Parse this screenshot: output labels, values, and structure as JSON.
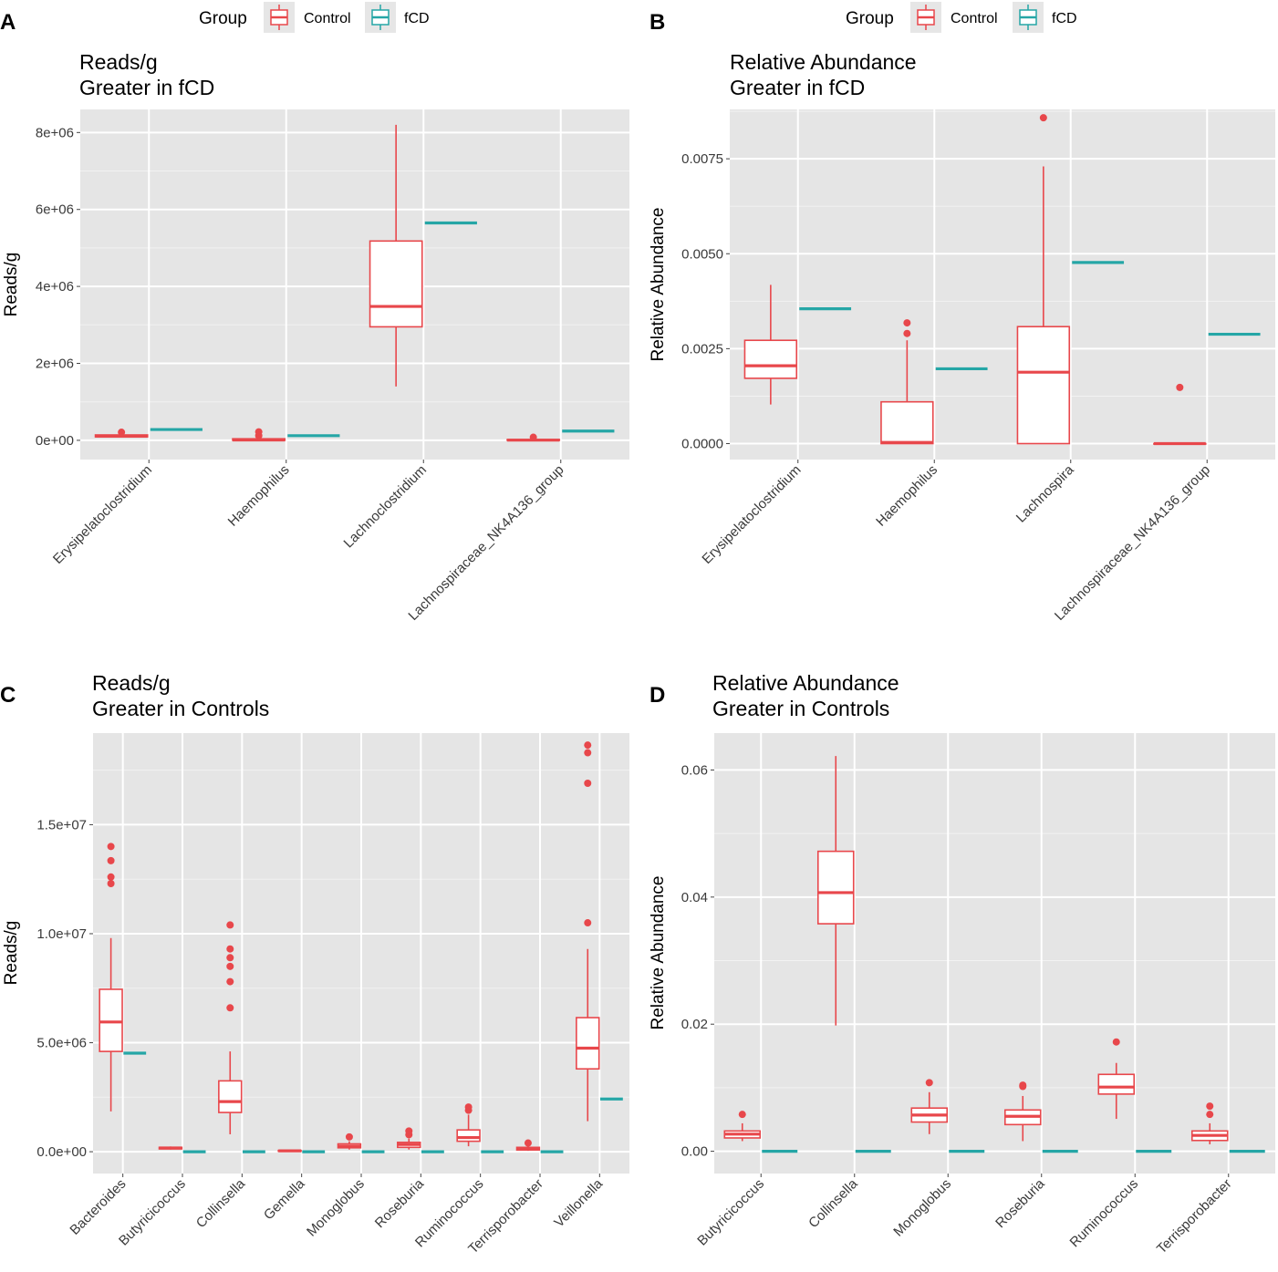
{
  "legend": {
    "title": "Group",
    "entries": [
      {
        "name": "Control",
        "color": "#E8474B"
      },
      {
        "name": "fCD",
        "color": "#25A6A6"
      }
    ]
  },
  "chart_data": [
    {
      "letter": "A",
      "type": "box",
      "title_lines": [
        "Reads/g",
        "Greater in fCD"
      ],
      "ylabel": "Reads/g",
      "ylim": [
        -500000,
        8600000
      ],
      "yticks": [
        0,
        2000000,
        4000000,
        6000000,
        8000000
      ],
      "ytick_labels": [
        "0e+00",
        "2e+06",
        "4e+06",
        "6e+06",
        "8e+06"
      ],
      "categories": [
        "Erysipelatoclostridium",
        "Haemophilus",
        "Lachnoclostridium",
        "Lachnospiraceae_NK4A136_group"
      ],
      "control": [
        {
          "min": 80000,
          "q1": 90000,
          "median": 110000,
          "q3": 140000,
          "max": 160000,
          "outliers": [
            210000
          ]
        },
        {
          "min": 0,
          "q1": 0,
          "median": 10000,
          "q3": 40000,
          "max": 60000,
          "outliers": [
            120000,
            220000
          ]
        },
        {
          "min": 1400000,
          "q1": 2950000,
          "median": 3480000,
          "q3": 5180000,
          "max": 8200000,
          "outliers": []
        },
        {
          "min": 0,
          "q1": 0,
          "median": 5000,
          "q3": 20000,
          "max": 30000,
          "outliers": [
            80000
          ]
        }
      ],
      "fcd": [
        280000,
        120000,
        5650000,
        240000
      ]
    },
    {
      "letter": "B",
      "type": "box",
      "title_lines": [
        "Relative Abundance",
        "Greater in fCD"
      ],
      "ylabel": "Relative Abundance",
      "ylim": [
        -0.00042,
        0.0088
      ],
      "yticks": [
        0,
        0.0025,
        0.005,
        0.0075
      ],
      "ytick_labels": [
        "0.0000",
        "0.0025",
        "0.0050",
        "0.0075"
      ],
      "categories": [
        "Erysipelatoclostridium",
        "Haemophilus",
        "Lachnospira",
        "Lachnospiraceae_NK4A136_group"
      ],
      "control": [
        {
          "min": 0.00103,
          "q1": 0.00172,
          "median": 0.00205,
          "q3": 0.00272,
          "max": 0.00418,
          "outliers": []
        },
        {
          "min": 0,
          "q1": 0,
          "median": 3e-05,
          "q3": 0.0011,
          "max": 0.00272,
          "outliers": [
            0.0029,
            0.00318
          ]
        },
        {
          "min": 0,
          "q1": 0,
          "median": 0.00188,
          "q3": 0.00308,
          "max": 0.0073,
          "outliers": [
            0.00858
          ]
        },
        {
          "min": 0,
          "q1": 0,
          "median": 0,
          "q3": 0,
          "max": 0,
          "outliers": [
            0.00148
          ]
        }
      ],
      "fcd": [
        0.00355,
        0.00197,
        0.00477,
        0.00288
      ]
    },
    {
      "letter": "C",
      "type": "box",
      "title_lines": [
        "Reads/g",
        "Greater in Controls"
      ],
      "ylabel": "Reads/g",
      "ylim": [
        -1000000,
        19200000
      ],
      "yticks": [
        0,
        5000000,
        10000000,
        15000000
      ],
      "ytick_labels": [
        "0.0e+00",
        "5.0e+06",
        "1.0e+07",
        "1.5e+07"
      ],
      "categories": [
        "Bacteroides",
        "Butyricicoccus",
        "Collinsella",
        "Gemella",
        "Monoglobus",
        "Roseburia",
        "Ruminococcus",
        "Terrisporobacter",
        "Veillonella"
      ],
      "control": [
        {
          "min": 1850000,
          "q1": 4600000,
          "median": 5950000,
          "q3": 7450000,
          "max": 9800000,
          "outliers": [
            12300000,
            12600000,
            13350000,
            14000000
          ]
        },
        {
          "min": 100000,
          "q1": 130000,
          "median": 170000,
          "q3": 200000,
          "max": 240000,
          "outliers": []
        },
        {
          "min": 800000,
          "q1": 1800000,
          "median": 2300000,
          "q3": 3250000,
          "max": 4600000,
          "outliers": [
            6600000,
            7800000,
            8500000,
            8900000,
            9300000,
            10400000
          ]
        },
        {
          "min": 0,
          "q1": 20000,
          "median": 40000,
          "q3": 60000,
          "max": 90000,
          "outliers": []
        },
        {
          "min": 100000,
          "q1": 180000,
          "median": 250000,
          "q3": 360000,
          "max": 480000,
          "outliers": [
            680000
          ]
        },
        {
          "min": 100000,
          "q1": 200000,
          "median": 330000,
          "q3": 430000,
          "max": 600000,
          "outliers": [
            780000,
            950000
          ]
        },
        {
          "min": 250000,
          "q1": 480000,
          "median": 650000,
          "q3": 1000000,
          "max": 1700000,
          "outliers": [
            1900000,
            2050000
          ]
        },
        {
          "min": 40000,
          "q1": 80000,
          "median": 130000,
          "q3": 200000,
          "max": 280000,
          "outliers": [
            400000
          ]
        },
        {
          "min": 1400000,
          "q1": 3800000,
          "median": 4750000,
          "q3": 6150000,
          "max": 9300000,
          "outliers": [
            10500000,
            16900000,
            18300000,
            18650000
          ]
        }
      ],
      "fcd": [
        4520000,
        0,
        0,
        0,
        0,
        0,
        0,
        0,
        2420000
      ]
    },
    {
      "letter": "D",
      "type": "box",
      "title_lines": [
        "Relative Abundance",
        "Greater in Controls"
      ],
      "ylabel": "Relative Abundance",
      "ylim": [
        -0.0035,
        0.0658
      ],
      "yticks": [
        0,
        0.02,
        0.04,
        0.06
      ],
      "ytick_labels": [
        "0.00",
        "0.02",
        "0.04",
        "0.06"
      ],
      "categories": [
        "Butyricicoccus",
        "Collinsella",
        "Monoglobus",
        "Roseburia",
        "Ruminococcus",
        "Terrisporobacter"
      ],
      "control": [
        {
          "min": 0.0016,
          "q1": 0.0021,
          "median": 0.0027,
          "q3": 0.0032,
          "max": 0.0044,
          "outliers": [
            0.0058
          ]
        },
        {
          "min": 0.0198,
          "q1": 0.0358,
          "median": 0.0407,
          "q3": 0.0472,
          "max": 0.0622,
          "outliers": []
        },
        {
          "min": 0.0027,
          "q1": 0.0046,
          "median": 0.0057,
          "q3": 0.0068,
          "max": 0.0093,
          "outliers": [
            0.0108
          ]
        },
        {
          "min": 0.0016,
          "q1": 0.0042,
          "median": 0.0055,
          "q3": 0.0065,
          "max": 0.0087,
          "outliers": [
            0.0102,
            0.0104
          ]
        },
        {
          "min": 0.0051,
          "q1": 0.009,
          "median": 0.0101,
          "q3": 0.0121,
          "max": 0.0139,
          "outliers": [
            0.0172
          ]
        },
        {
          "min": 0.0011,
          "q1": 0.0017,
          "median": 0.0025,
          "q3": 0.0032,
          "max": 0.0044,
          "outliers": [
            0.0058,
            0.0071
          ]
        }
      ],
      "fcd": [
        0,
        0,
        0,
        0,
        0,
        0
      ]
    }
  ]
}
